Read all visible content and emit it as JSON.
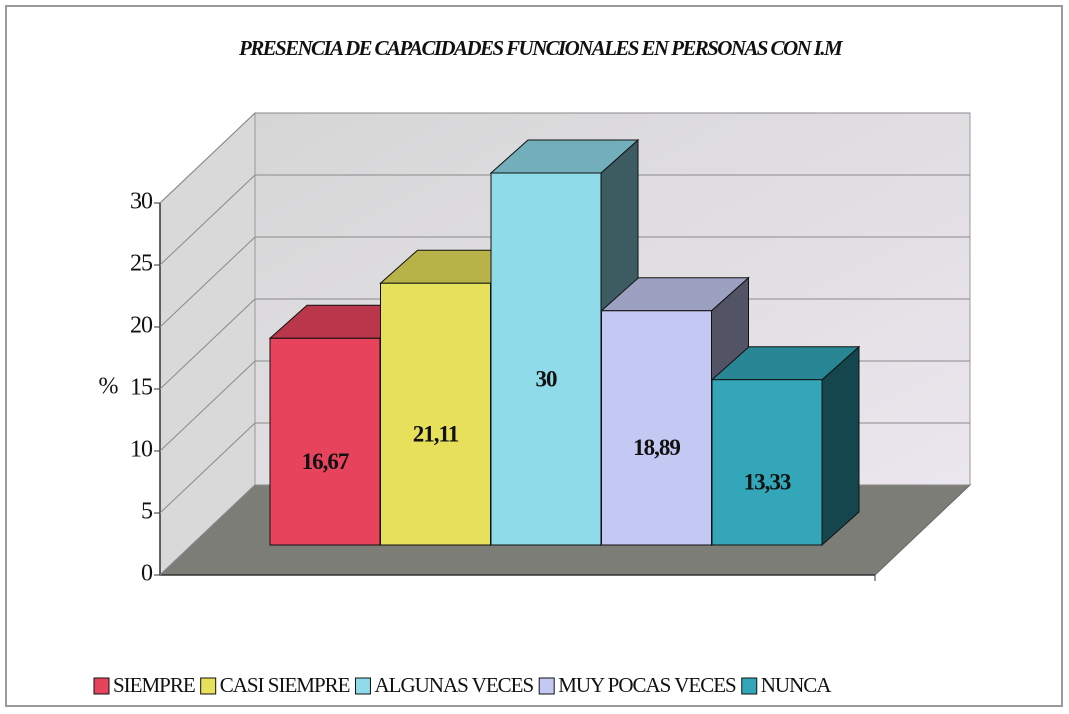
{
  "chart_data": {
    "type": "bar",
    "title": "PRESENCIA DE CAPACIDADES FUNCIONALES EN PERSONAS CON I.M",
    "ylabel": "%",
    "categories": [
      "SIEMPRE",
      "CASI SIEMPRE",
      "ALGUNAS VECES",
      "MUY POCAS VECES",
      "NUNCA"
    ],
    "values": [
      16.67,
      21.11,
      30,
      18.89,
      13.33
    ],
    "value_labels": [
      "16,67",
      "21,11",
      "30",
      "18,89",
      "13,33"
    ],
    "colors": [
      "#e8435c",
      "#e6e05a",
      "#8fdbe9",
      "#c3c9f2",
      "#33a7b9"
    ],
    "ylim": [
      0,
      30
    ],
    "yticks": [
      0,
      5,
      10,
      15,
      20,
      25,
      30
    ],
    "grid": true,
    "legend": "bottom"
  }
}
